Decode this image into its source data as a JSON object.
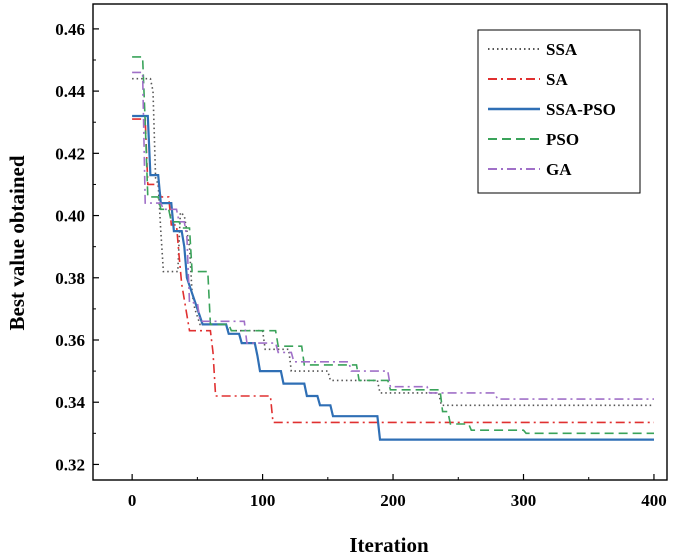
{
  "chart_data": {
    "type": "line",
    "title": "",
    "xlabel": "Iteration",
    "ylabel": "Best value obtained",
    "xlim": [
      -30,
      410
    ],
    "ylim": [
      0.315,
      0.468
    ],
    "xticks": [
      0,
      100,
      200,
      300,
      400
    ],
    "yticks": [
      0.32,
      0.34,
      0.36,
      0.38,
      0.4,
      0.42,
      0.44,
      0.46
    ],
    "xtick_labels": [
      "0",
      "100",
      "200",
      "300",
      "400"
    ],
    "ytick_labels": [
      "0.32",
      "0.34",
      "0.36",
      "0.38",
      "0.40",
      "0.42",
      "0.44",
      "0.46"
    ],
    "grid": false,
    "legend_position": "top-right",
    "series": [
      {
        "name": "SSA",
        "color": "#555555",
        "dash": "dotted",
        "points": [
          [
            0,
            0.444
          ],
          [
            14,
            0.444
          ],
          [
            16,
            0.44
          ],
          [
            18,
            0.412
          ],
          [
            20,
            0.41
          ],
          [
            22,
            0.395
          ],
          [
            24,
            0.382
          ],
          [
            35,
            0.382
          ],
          [
            37,
            0.401
          ],
          [
            40,
            0.4
          ],
          [
            44,
            0.39
          ],
          [
            46,
            0.375
          ],
          [
            48,
            0.37
          ],
          [
            52,
            0.365
          ],
          [
            72,
            0.365
          ],
          [
            74,
            0.363
          ],
          [
            100,
            0.363
          ],
          [
            102,
            0.357
          ],
          [
            120,
            0.357
          ],
          [
            122,
            0.35
          ],
          [
            150,
            0.35
          ],
          [
            152,
            0.347
          ],
          [
            188,
            0.347
          ],
          [
            190,
            0.343
          ],
          [
            235,
            0.343
          ],
          [
            237,
            0.339
          ],
          [
            400,
            0.339
          ]
        ]
      },
      {
        "name": "SA",
        "color": "#e03030",
        "dash": "dashdot",
        "points": [
          [
            0,
            0.431
          ],
          [
            10,
            0.431
          ],
          [
            12,
            0.41
          ],
          [
            20,
            0.41
          ],
          [
            22,
            0.406
          ],
          [
            28,
            0.406
          ],
          [
            30,
            0.397
          ],
          [
            34,
            0.397
          ],
          [
            36,
            0.387
          ],
          [
            38,
            0.378
          ],
          [
            42,
            0.368
          ],
          [
            44,
            0.363
          ],
          [
            60,
            0.363
          ],
          [
            62,
            0.356
          ],
          [
            64,
            0.342
          ],
          [
            106,
            0.342
          ],
          [
            108,
            0.3335
          ],
          [
            400,
            0.3335
          ]
        ]
      },
      {
        "name": "SSA-PSO",
        "color": "#2f6fb5",
        "dash": "solid",
        "points": [
          [
            0,
            0.432
          ],
          [
            12,
            0.432
          ],
          [
            14,
            0.413
          ],
          [
            20,
            0.413
          ],
          [
            22,
            0.404
          ],
          [
            30,
            0.404
          ],
          [
            32,
            0.395
          ],
          [
            38,
            0.395
          ],
          [
            40,
            0.39
          ],
          [
            42,
            0.38
          ],
          [
            46,
            0.375
          ],
          [
            50,
            0.37
          ],
          [
            54,
            0.365
          ],
          [
            72,
            0.365
          ],
          [
            74,
            0.362
          ],
          [
            82,
            0.362
          ],
          [
            84,
            0.359
          ],
          [
            94,
            0.359
          ],
          [
            96,
            0.355
          ],
          [
            98,
            0.35
          ],
          [
            114,
            0.35
          ],
          [
            116,
            0.346
          ],
          [
            132,
            0.346
          ],
          [
            134,
            0.342
          ],
          [
            142,
            0.342
          ],
          [
            144,
            0.339
          ],
          [
            152,
            0.339
          ],
          [
            154,
            0.3355
          ],
          [
            188,
            0.3355
          ],
          [
            190,
            0.328
          ],
          [
            400,
            0.328
          ]
        ]
      },
      {
        "name": "PSO",
        "color": "#3aa35a",
        "dash": "dashed",
        "points": [
          [
            0,
            0.451
          ],
          [
            8,
            0.451
          ],
          [
            10,
            0.43
          ],
          [
            12,
            0.406
          ],
          [
            20,
            0.406
          ],
          [
            22,
            0.402
          ],
          [
            28,
            0.402
          ],
          [
            30,
            0.398
          ],
          [
            36,
            0.398
          ],
          [
            38,
            0.396
          ],
          [
            44,
            0.396
          ],
          [
            46,
            0.382
          ],
          [
            58,
            0.382
          ],
          [
            60,
            0.365
          ],
          [
            74,
            0.365
          ],
          [
            76,
            0.363
          ],
          [
            110,
            0.363
          ],
          [
            112,
            0.358
          ],
          [
            130,
            0.358
          ],
          [
            132,
            0.352
          ],
          [
            172,
            0.352
          ],
          [
            174,
            0.347
          ],
          [
            196,
            0.347
          ],
          [
            198,
            0.344
          ],
          [
            236,
            0.344
          ],
          [
            238,
            0.337
          ],
          [
            242,
            0.337
          ],
          [
            244,
            0.333
          ],
          [
            258,
            0.333
          ],
          [
            260,
            0.331
          ],
          [
            300,
            0.331
          ],
          [
            302,
            0.33
          ],
          [
            400,
            0.33
          ]
        ]
      },
      {
        "name": "GA",
        "color": "#a070c8",
        "dash": "dashdot",
        "points": [
          [
            0,
            0.446
          ],
          [
            8,
            0.446
          ],
          [
            10,
            0.404
          ],
          [
            22,
            0.404
          ],
          [
            24,
            0.402
          ],
          [
            34,
            0.402
          ],
          [
            36,
            0.398
          ],
          [
            40,
            0.398
          ],
          [
            42,
            0.393
          ],
          [
            44,
            0.372
          ],
          [
            50,
            0.372
          ],
          [
            52,
            0.366
          ],
          [
            86,
            0.366
          ],
          [
            88,
            0.359
          ],
          [
            110,
            0.359
          ],
          [
            112,
            0.356
          ],
          [
            122,
            0.356
          ],
          [
            124,
            0.353
          ],
          [
            166,
            0.353
          ],
          [
            168,
            0.35
          ],
          [
            196,
            0.35
          ],
          [
            198,
            0.345
          ],
          [
            226,
            0.345
          ],
          [
            228,
            0.343
          ],
          [
            278,
            0.343
          ],
          [
            280,
            0.341
          ],
          [
            400,
            0.341
          ]
        ]
      }
    ]
  }
}
